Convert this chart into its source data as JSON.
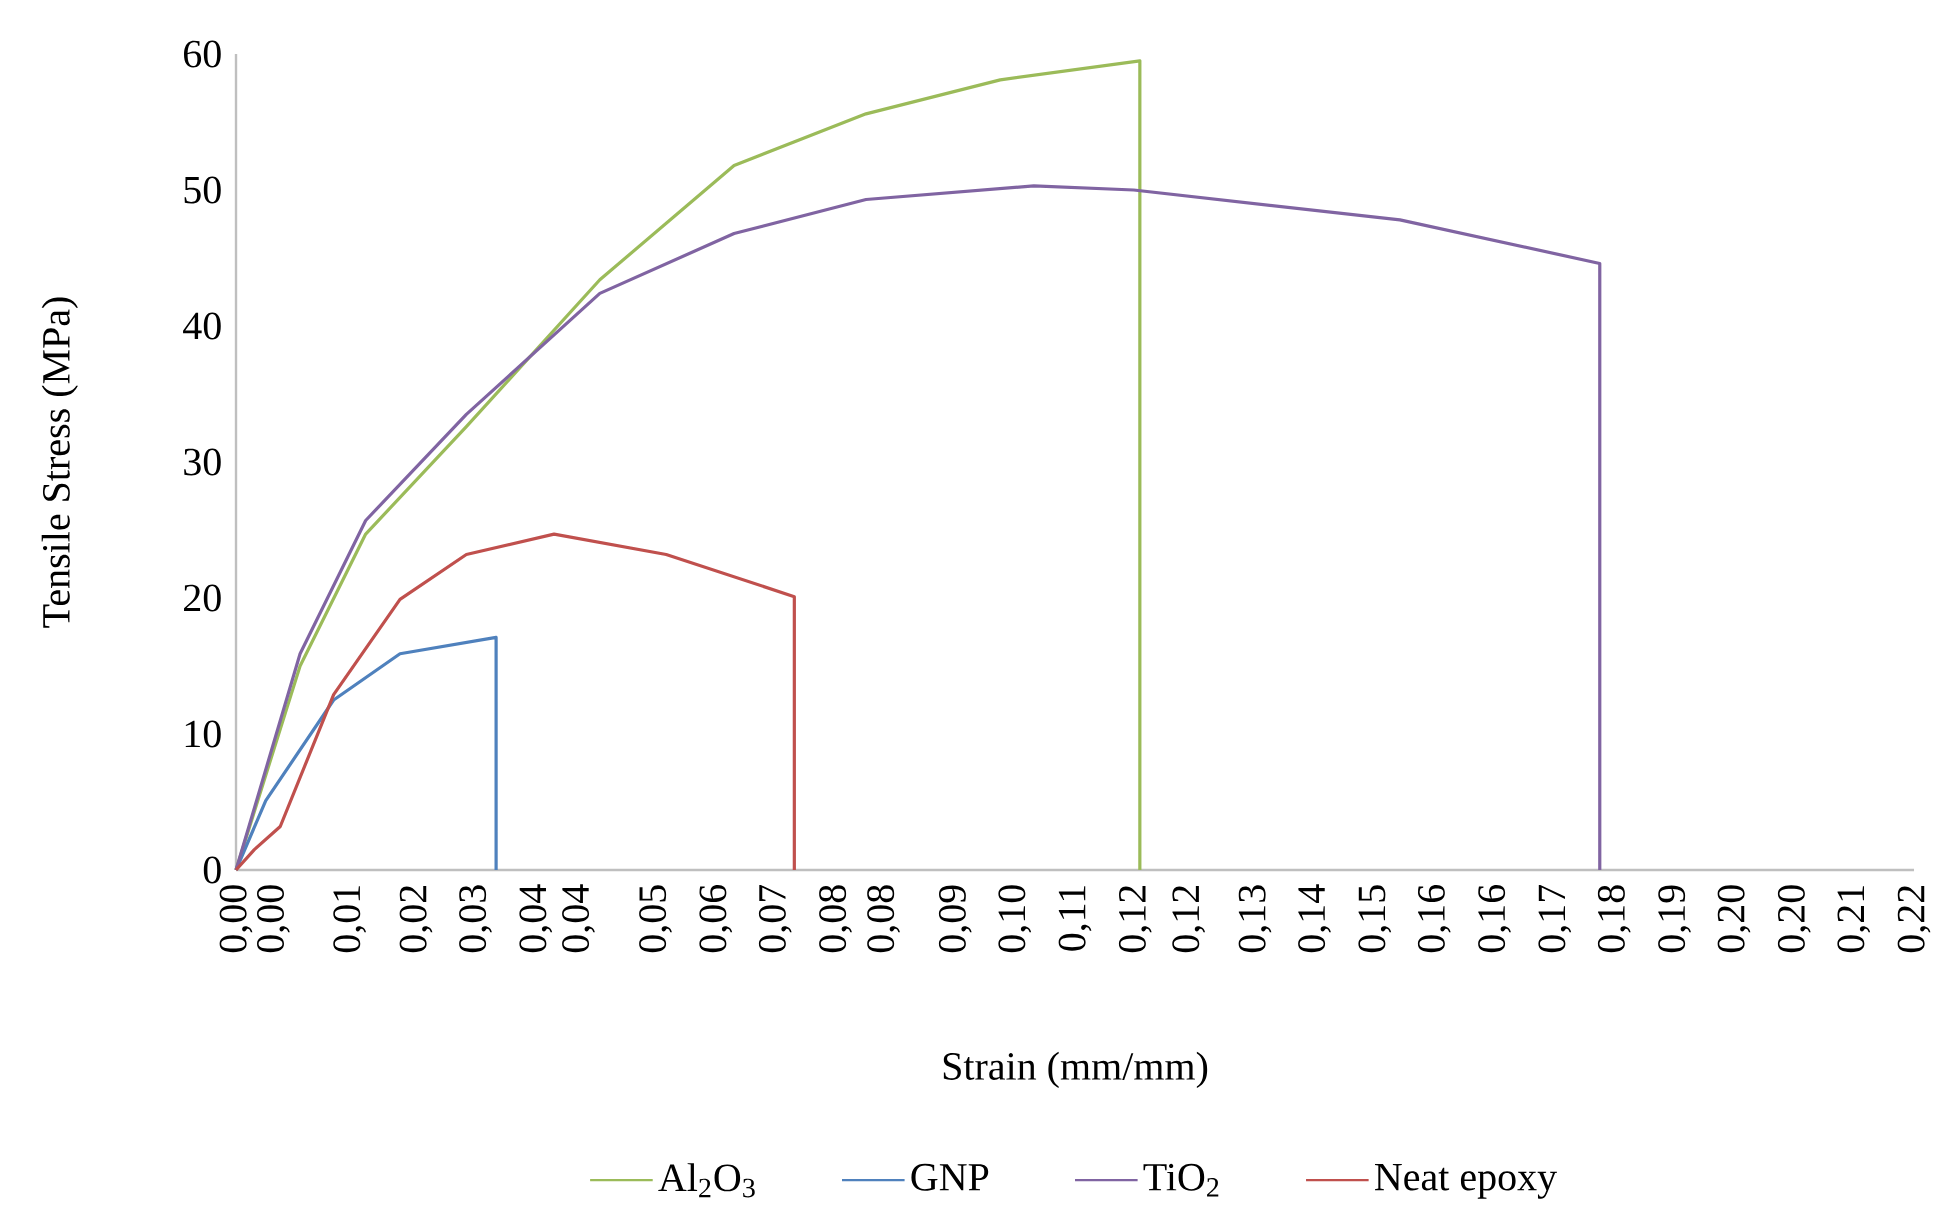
{
  "chart_data": {
    "type": "line",
    "xlabel": "Strain (mm/mm)",
    "ylabel": "Tensile Stress (MPa)",
    "xlim": [
      0,
      0.22
    ],
    "ylim": [
      0,
      60
    ],
    "yticks": [
      0,
      10,
      20,
      30,
      40,
      50,
      60
    ],
    "xticks": [
      {
        "value": 0,
        "label": "0,00"
      },
      {
        "value": 0.0049,
        "label": "0,00"
      },
      {
        "value": 0.0149,
        "label": "0,01"
      },
      {
        "value": 0.0236,
        "label": "0,02"
      },
      {
        "value": 0.0314,
        "label": "0,03"
      },
      {
        "value": 0.0393,
        "label": "0,04"
      },
      {
        "value": 0.0449,
        "label": "0,04"
      },
      {
        "value": 0.055,
        "label": "0,05"
      },
      {
        "value": 0.0629,
        "label": "0,06"
      },
      {
        "value": 0.0707,
        "label": "0,07"
      },
      {
        "value": 0.0786,
        "label": "0,08"
      },
      {
        "value": 0.0849,
        "label": "0,08"
      },
      {
        "value": 0.0943,
        "label": "0,09"
      },
      {
        "value": 0.1021,
        "label": "0,10"
      },
      {
        "value": 0.11,
        "label": "0,11"
      },
      {
        "value": 0.1179,
        "label": "0,12"
      },
      {
        "value": 0.1249,
        "label": "0,12"
      },
      {
        "value": 0.1336,
        "label": "0,13"
      },
      {
        "value": 0.1414,
        "label": "0,14"
      },
      {
        "value": 0.1493,
        "label": "0,15"
      },
      {
        "value": 0.1571,
        "label": "0,16"
      },
      {
        "value": 0.165,
        "label": "0,16"
      },
      {
        "value": 0.1729,
        "label": "0,17"
      },
      {
        "value": 0.1807,
        "label": "0,18"
      },
      {
        "value": 0.1886,
        "label": "0,19"
      },
      {
        "value": 0.1964,
        "label": "0,20"
      },
      {
        "value": 0.2043,
        "label": "0,20"
      },
      {
        "value": 0.2121,
        "label": "0,21"
      },
      {
        "value": 0.22,
        "label": "0,22"
      }
    ],
    "grid": false,
    "legend": "bottom",
    "marker": "none",
    "line_style": "solid",
    "series": [
      {
        "name": "Al$_{2}$O$_{3}$",
        "color": "#9bbb59",
        "x": [
          0,
          0.0084,
          0.017,
          0.0302,
          0.0477,
          0.0653,
          0.0826,
          0.1002,
          0.1185,
          0.1185
        ],
        "values": [
          0,
          15,
          24.7,
          32.6,
          43.4,
          51.8,
          55.6,
          58.1,
          59.5,
          0
        ]
      },
      {
        "name": "GNP",
        "color": "#4f81bd",
        "x": [
          0,
          0.0039,
          0.0128,
          0.0215,
          0.0341,
          0.0341
        ],
        "values": [
          0,
          5.1,
          12.5,
          15.9,
          17.1,
          0
        ]
      },
      {
        "name": "TiO$_{2}$",
        "color": "#8064a2",
        "x": [
          0,
          0.0084,
          0.017,
          0.0302,
          0.0477,
          0.0653,
          0.0826,
          0.1046,
          0.1177,
          0.1526,
          0.1788,
          0.1788
        ],
        "values": [
          0,
          15.9,
          25.7,
          33.5,
          42.4,
          46.8,
          49.3,
          50.3,
          50,
          47.8,
          44.6,
          0
        ]
      },
      {
        "name": "Neat epoxy",
        "color": "#c0504d",
        "x": [
          0,
          0.0024,
          0.0058,
          0.0128,
          0.0215,
          0.0302,
          0.0417,
          0.0564,
          0.0732,
          0.0732
        ],
        "values": [
          0,
          1.5,
          3.2,
          12.9,
          19.9,
          23.2,
          24.7,
          23.2,
          20.1,
          0
        ]
      }
    ]
  }
}
